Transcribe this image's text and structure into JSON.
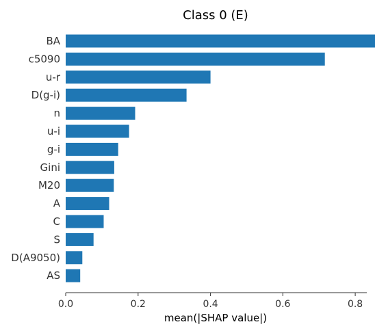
{
  "chart_data": {
    "type": "bar",
    "orientation": "horizontal",
    "title": "Class 0 (E)",
    "xlabel": "mean(|SHAP value|)",
    "ylabel": "",
    "categories": [
      "BA",
      "c5090",
      "u-r",
      "D(g-i)",
      "n",
      "u-i",
      "g-i",
      "Gini",
      "M20",
      "A",
      "C",
      "S",
      "D(A9050)",
      "AS"
    ],
    "values": [
      0.882,
      0.716,
      0.4,
      0.334,
      0.192,
      0.175,
      0.145,
      0.134,
      0.133,
      0.12,
      0.105,
      0.077,
      0.046,
      0.04
    ],
    "xlim": [
      0,
      0.9
    ],
    "xticks": [
      0.0,
      0.2,
      0.4,
      0.6,
      0.8
    ],
    "xtick_labels": [
      "0.0",
      "0.2",
      "0.4",
      "0.6",
      "0.8"
    ],
    "bar_color": "#1f77b4",
    "grid": false
  }
}
